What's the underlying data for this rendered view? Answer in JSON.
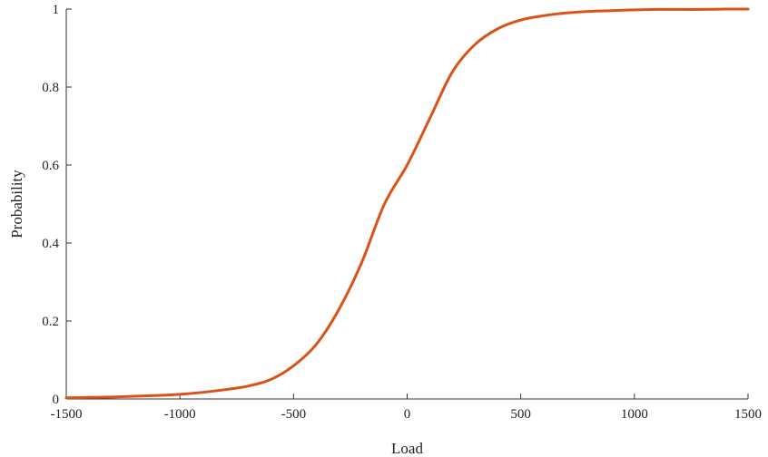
{
  "chart_data": {
    "type": "line",
    "title": "",
    "xlabel": "Load",
    "ylabel": "Probability",
    "xlim": [
      -1500,
      1500
    ],
    "ylim": [
      0,
      1
    ],
    "xticks": [
      -1500,
      -1000,
      -500,
      0,
      500,
      1000,
      1500
    ],
    "xtick_labels": [
      "-1500",
      "-1000",
      "-500",
      "0",
      "500",
      "1000",
      "1500"
    ],
    "yticks": [
      0,
      0.2,
      0.4,
      0.6,
      0.8,
      1
    ],
    "ytick_labels": [
      "0",
      "0.2",
      "0.4",
      "0.6",
      "0.8",
      "1"
    ],
    "grid": false,
    "legend": "none",
    "series": [
      {
        "color": "#d95319",
        "x": [
          -1500,
          -1400,
          -1300,
          -1200,
          -1100,
          -1000,
          -900,
          -800,
          -700,
          -600,
          -500,
          -400,
          -300,
          -200,
          -100,
          0,
          100,
          200,
          300,
          400,
          500,
          600,
          700,
          800,
          900,
          1000,
          1100,
          1200,
          1300,
          1400,
          1500
        ],
        "y": [
          0.003,
          0.004,
          0.005,
          0.007,
          0.009,
          0.012,
          0.017,
          0.024,
          0.033,
          0.05,
          0.085,
          0.14,
          0.23,
          0.35,
          0.5,
          0.6,
          0.72,
          0.84,
          0.91,
          0.95,
          0.972,
          0.983,
          0.99,
          0.994,
          0.996,
          0.998,
          0.999,
          0.999,
          0.999,
          1.0,
          1.0
        ]
      }
    ]
  }
}
